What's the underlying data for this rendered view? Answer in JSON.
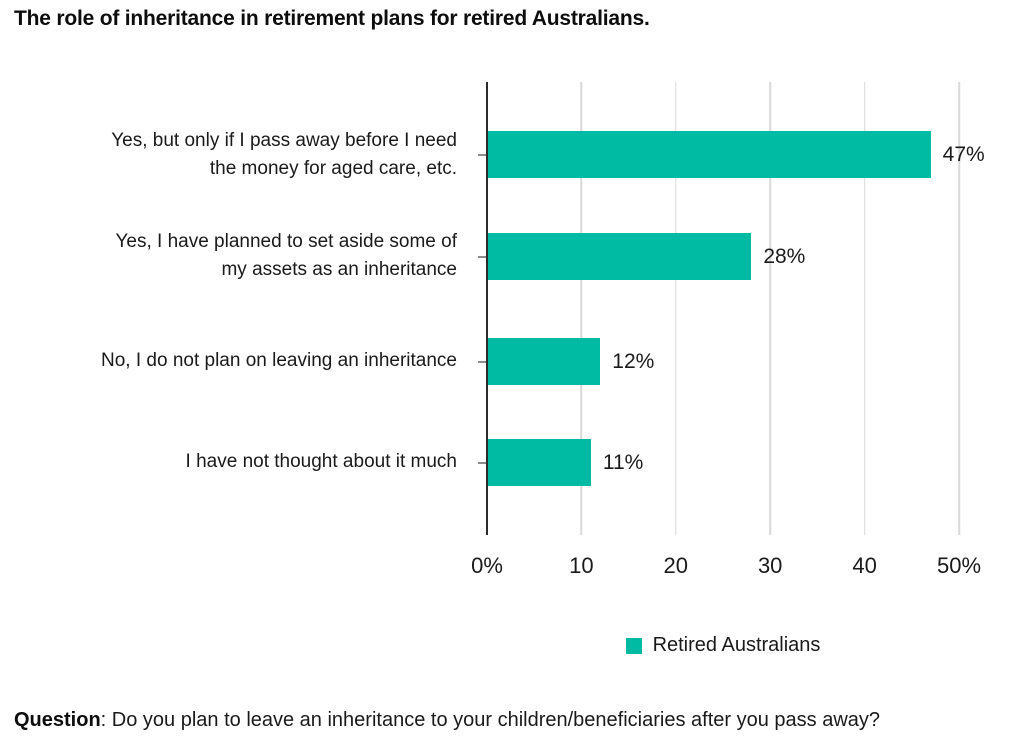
{
  "title": "The role of inheritance in retirement plans for retired Australians.",
  "chart_data": {
    "type": "bar",
    "orientation": "horizontal",
    "title": "The role of inheritance in retirement plans for retired Australians.",
    "categories": [
      "Yes, but only if I pass away before I need the money for aged care, etc.",
      "Yes, I have planned to set aside some of my assets as an inheritance",
      "No, I do not plan on leaving an inheritance",
      "I have not thought about it much"
    ],
    "label_lines": [
      [
        "Yes, but only if I pass away before I need",
        "the money for aged care, etc."
      ],
      [
        "Yes, I have planned to set aside some of",
        "my assets as an inheritance"
      ],
      [
        "No, I do not plan on leaving an inheritance"
      ],
      [
        "I have not thought about it much"
      ]
    ],
    "values": [
      47,
      28,
      12,
      11
    ],
    "value_labels": [
      "47%",
      "28%",
      "12%",
      "11%"
    ],
    "series": [
      {
        "name": "Retired Australians",
        "values": [
          47,
          28,
          12,
          11
        ]
      }
    ],
    "xlim": [
      0,
      50
    ],
    "x_ticks": [
      "0%",
      "10",
      "20",
      "30",
      "40",
      "50%"
    ],
    "x_tick_values": [
      0,
      10,
      20,
      30,
      40,
      50
    ],
    "grid": "vertical gridlines on",
    "legend_position": "bottom center",
    "bar_color": "#00bba4",
    "gridline_color": "#d9d9d9",
    "axis_color": "#2b2b2b"
  },
  "legend": {
    "label": "Retired Australians",
    "swatch_color": "#00bba4"
  },
  "footer": {
    "prefix": "Question",
    "text": ": Do you plan to leave an inheritance to your children/beneficiaries after you pass away?"
  }
}
